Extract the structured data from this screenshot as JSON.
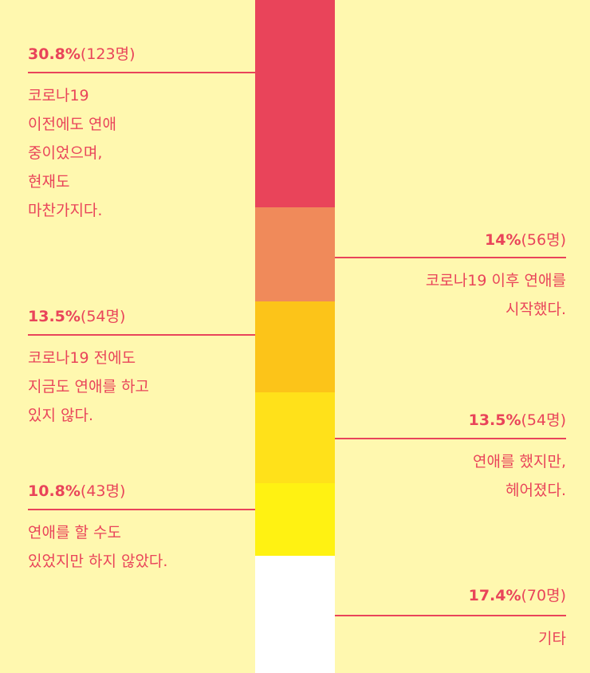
{
  "colors": {
    "background": "#FFF8AF",
    "text": "#E9445A"
  },
  "chart_data": {
    "type": "bar",
    "stacked": true,
    "orientation": "vertical",
    "categories": [
      "코로나19 이전에도 연애 중이었으며, 현재도 마찬가지다.",
      "코로나19 이후 연애를 시작했다.",
      "코로나19 전에도 지금도 연애를 하고 있지 않다.",
      "연애를 했지만, 헤어졌다.",
      "연애를 할 수도 있었지만 하지 않았다.",
      "기타"
    ],
    "values": [
      30.8,
      14,
      13.5,
      13.5,
      10.8,
      17.4
    ],
    "counts": [
      123,
      56,
      54,
      54,
      43,
      70
    ],
    "colors": [
      "#E9445A",
      "#F08A5A",
      "#FCC419",
      "#FFE11A",
      "#FFF212",
      "#FFFFFF"
    ],
    "labels": [
      {
        "pct": "30.8%",
        "count": "(123명)",
        "lines": [
          "코로나19",
          "이전에도 연애",
          "중이었으며,",
          "현재도",
          "마찬가지다."
        ]
      },
      {
        "pct": "14%",
        "count": "(56명)",
        "lines": [
          "코로나19 이후 연애를",
          "시작했다."
        ]
      },
      {
        "pct": "13.5%",
        "count": "(54명)",
        "lines": [
          "코로나19 전에도",
          "지금도 연애를 하고",
          "있지 않다."
        ]
      },
      {
        "pct": "13.5%",
        "count": "(54명)",
        "lines": [
          "연애를 했지만,",
          "헤어졌다."
        ]
      },
      {
        "pct": "10.8%",
        "count": "(43명)",
        "lines": [
          "연애를 할 수도",
          "있었지만 하지 않았다."
        ]
      },
      {
        "pct": "17.4%",
        "count": "(70명)",
        "lines": [
          "기타"
        ]
      }
    ]
  }
}
